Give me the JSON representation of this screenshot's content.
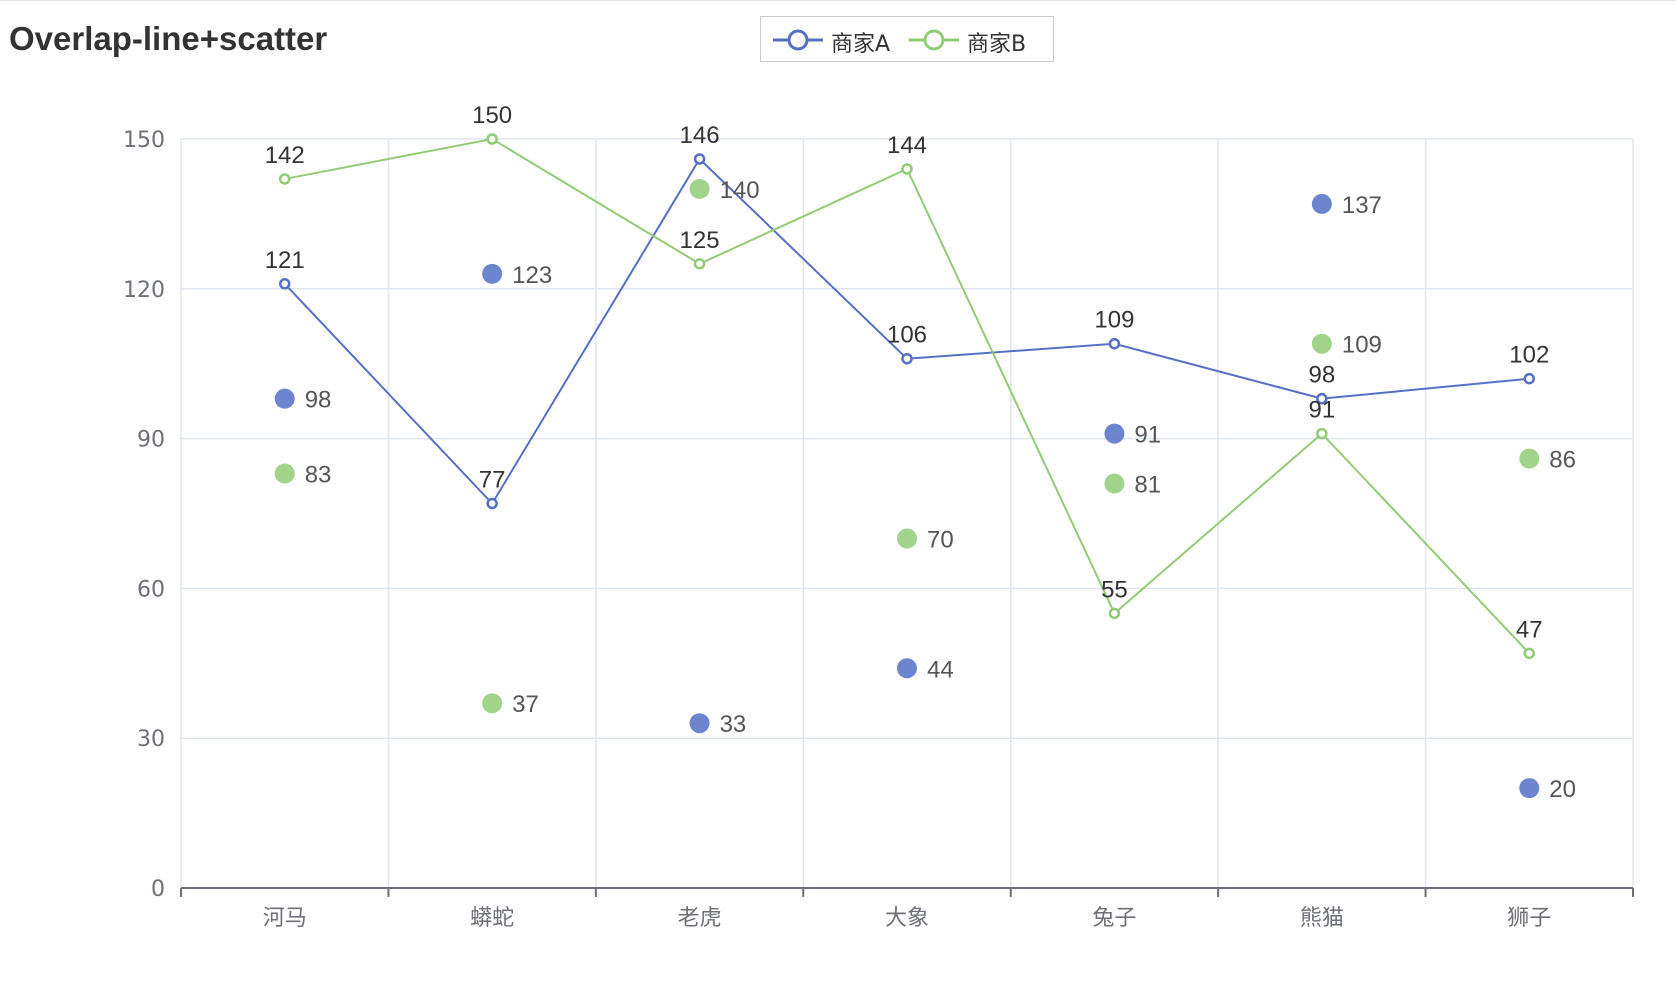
{
  "chart_data": {
    "type": "line",
    "title": "Overlap-line+scatter",
    "categories": [
      "河马",
      "蟒蛇",
      "老虎",
      "大象",
      "兔子",
      "熊猫",
      "狮子"
    ],
    "ylim": [
      0,
      150
    ],
    "yticks": [
      0,
      30,
      60,
      90,
      120,
      150
    ],
    "grid": true,
    "legend_position": "top-center",
    "legend": [
      "商家A",
      "商家B"
    ],
    "series": [
      {
        "name": "商家A",
        "kind": "line",
        "color": "#5470c6",
        "values": [
          121,
          77,
          146,
          106,
          109,
          98,
          102
        ]
      },
      {
        "name": "商家B",
        "kind": "line",
        "color": "#91cc75",
        "values": [
          142,
          150,
          125,
          144,
          55,
          91,
          47
        ]
      },
      {
        "name": "商家A",
        "kind": "scatter",
        "color": "#5470c6",
        "values": [
          98,
          123,
          33,
          44,
          91,
          137,
          20
        ]
      },
      {
        "name": "商家B",
        "kind": "scatter",
        "color": "#91cc75",
        "values": [
          83,
          37,
          140,
          70,
          81,
          109,
          86
        ]
      }
    ]
  },
  "colors": {
    "series_a": "#5470c6",
    "series_b": "#91cc75",
    "grid": "#e0e6f1",
    "axis": "#6e7079",
    "label": "#333333"
  }
}
